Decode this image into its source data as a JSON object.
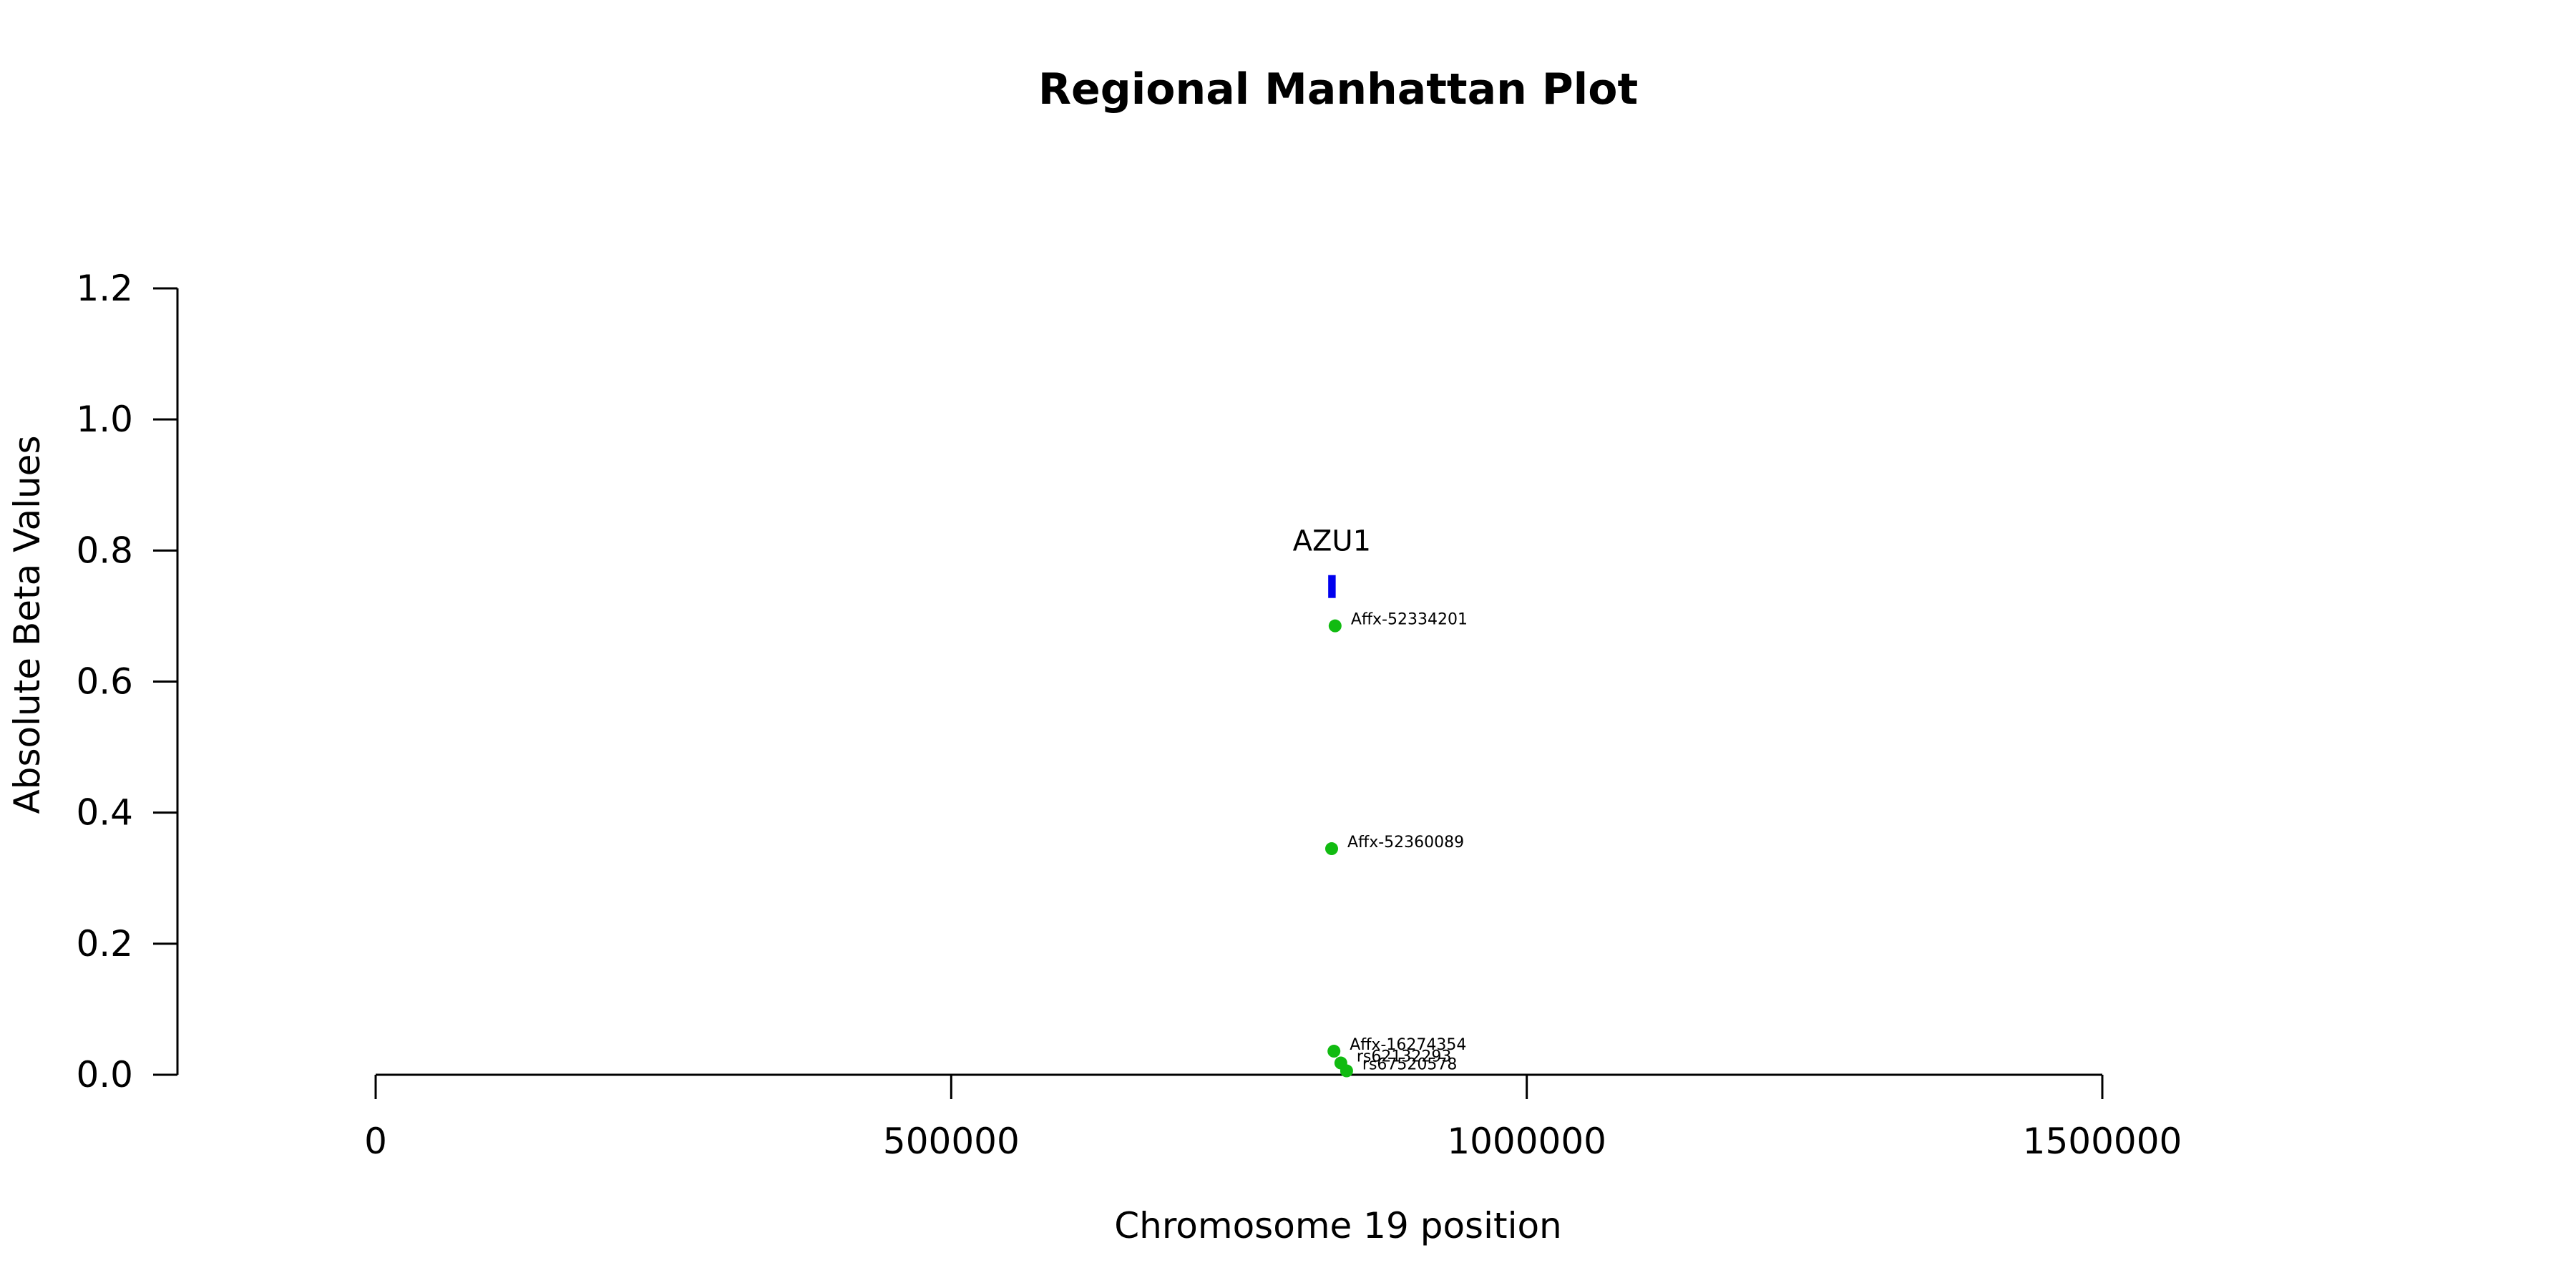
{
  "chart_data": {
    "type": "scatter",
    "title": "Regional Manhattan Plot",
    "xlabel": "Chromosome 19 position",
    "ylabel": "Absolute Beta Values",
    "xlim": [
      0,
      1500000
    ],
    "ylim": [
      0,
      1.2
    ],
    "x_ticks": [
      0,
      500000,
      1000000,
      1500000
    ],
    "x_tick_labels": [
      "0",
      "500000",
      "1000000",
      "1500000"
    ],
    "y_ticks": [
      0,
      0.2,
      0.4,
      0.6,
      0.8,
      1.0,
      1.2
    ],
    "y_tick_labels": [
      "0.0",
      "0.2",
      "0.4",
      "0.6",
      "0.8",
      "1.0",
      "1.2"
    ],
    "grid": false,
    "point_color": "#11bb11",
    "gene_color": "#0000ee",
    "points": [
      {
        "label": "Affx-52334201",
        "x": 833500,
        "y": 0.685
      },
      {
        "label": "Affx-52360089",
        "x": 830500,
        "y": 0.345
      },
      {
        "label": "Affx-16274354",
        "x": 832500,
        "y": 0.036
      },
      {
        "label": "rs62132293",
        "x": 838500,
        "y": 0.018
      },
      {
        "label": "rs67520578",
        "x": 843500,
        "y": 0.006
      }
    ],
    "genes": [
      {
        "name": "AZU1",
        "start": 827500,
        "end": 834000,
        "y": 0.745
      }
    ]
  }
}
